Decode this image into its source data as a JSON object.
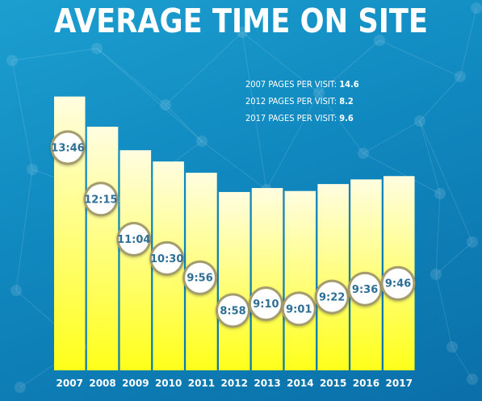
{
  "title": "AVERAGE TIME ON SITE",
  "stats": [
    {
      "label": "2007 PAGES PER VISIT:",
      "value": "14.6"
    },
    {
      "label": "2012 PAGES PER VISIT:",
      "value": "8.2"
    },
    {
      "label": "2017 PAGES PER VISIT:",
      "value": "9.6"
    }
  ],
  "colors": {
    "background": "#1088bf",
    "bar_top": "#fffde0",
    "bar_bottom": "#ffff1a",
    "bubble_text": "#2d6f95",
    "bubble_ring": "#a49c6c"
  },
  "chart_data": {
    "type": "bar",
    "title": "AVERAGE TIME ON SITE",
    "xlabel": "",
    "ylabel": "",
    "categories": [
      "2007",
      "2008",
      "2009",
      "2010",
      "2011",
      "2012",
      "2013",
      "2014",
      "2015",
      "2016",
      "2017"
    ],
    "values": [
      826,
      735,
      664,
      630,
      596,
      538,
      550,
      541,
      562,
      576,
      586
    ],
    "labels": [
      "13:46",
      "12:15",
      "11:04",
      "10:30",
      "9:56",
      "8:58",
      "9:10",
      "9:01",
      "9:22",
      "9:36",
      "9:46"
    ],
    "unit": "seconds",
    "ylim": [
      0,
      830
    ],
    "grid": false,
    "legend": "none"
  }
}
